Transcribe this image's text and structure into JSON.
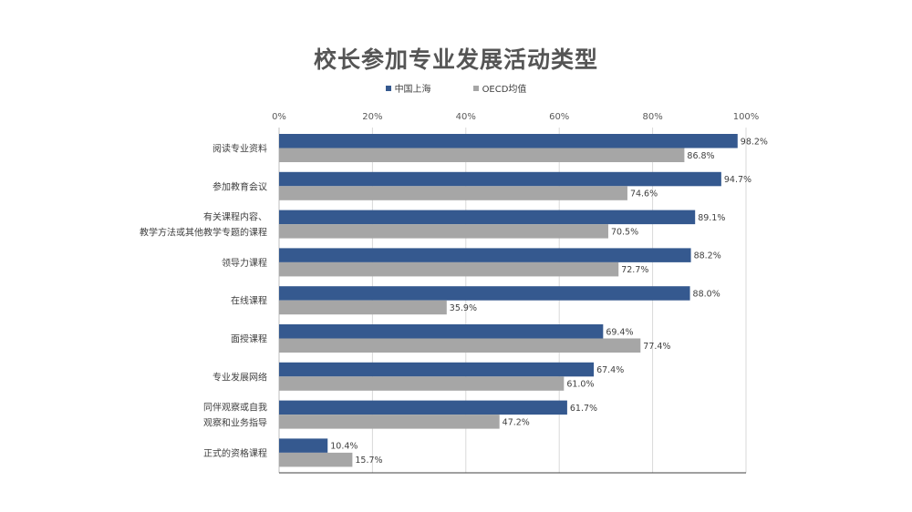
{
  "chart_data": {
    "type": "bar",
    "orientation": "horizontal",
    "title": "校长参加专业发展活动类型",
    "categories": [
      [
        "阅读专业资料"
      ],
      [
        "参加教育会议"
      ],
      [
        "有关课程内容、",
        "教学方法或其他教学专题的课程"
      ],
      [
        "领导力课程"
      ],
      [
        "在线课程"
      ],
      [
        "面授课程"
      ],
      [
        "专业发展网络"
      ],
      [
        "同伴观察或自我",
        "观察和业务指导"
      ],
      [
        "正式的资格课程"
      ]
    ],
    "series": [
      {
        "name": "中国上海",
        "color": "#35598f",
        "values": [
          98.2,
          94.7,
          89.1,
          88.2,
          88.0,
          69.4,
          67.4,
          61.7,
          10.4
        ]
      },
      {
        "name": "OECD均值",
        "color": "#a6a6a6",
        "values": [
          86.8,
          74.6,
          70.5,
          72.7,
          35.9,
          77.4,
          61.0,
          47.2,
          15.7
        ]
      }
    ],
    "xlim": [
      0,
      100
    ],
    "xticks": [
      0,
      20,
      40,
      60,
      80,
      100
    ],
    "tick_suffix": "%",
    "value_suffix": "%",
    "x_axis_position": "top",
    "legend_position": "top",
    "grid": true
  }
}
